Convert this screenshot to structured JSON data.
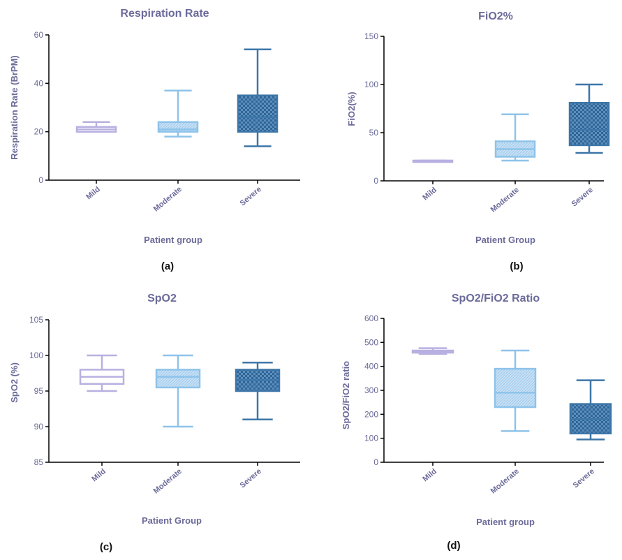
{
  "chart_data": [
    {
      "type": "box",
      "letter": "(a)",
      "title": "Respiration Rate",
      "xlabel": "Patient group",
      "ylabel": "Respiration Rate (BrPM)",
      "ylim": [
        0,
        60
      ],
      "yticks": [
        0,
        20,
        40,
        60
      ],
      "categories": [
        "Mild",
        "Moderate",
        "Severe"
      ],
      "boxes": [
        {
          "min": 20,
          "q1": 20,
          "median": 21,
          "q3": 22,
          "max": 24,
          "color": "#d8d2ee",
          "edge": "#b8b0e0",
          "pattern": "none"
        },
        {
          "min": 18,
          "q1": 20,
          "median": 21,
          "q3": 24,
          "max": 37,
          "color": "#c4ddf3",
          "edge": "#8ec3ea",
          "pattern": "hatch"
        },
        {
          "min": 14,
          "q1": 20,
          "median": 26,
          "q3": 35,
          "max": 54,
          "color": "#4f85b6",
          "edge": "#3d76a8",
          "pattern": "check"
        }
      ]
    },
    {
      "type": "box",
      "letter": "(b)",
      "title": "FiO2%",
      "xlabel": "Patient Group",
      "ylabel": "FiO2(%)",
      "ylim": [
        0,
        150
      ],
      "yticks": [
        0,
        50,
        100,
        150
      ],
      "categories": [
        "Mild",
        "Moderate",
        "Severe"
      ],
      "boxes": [
        {
          "min": 21,
          "q1": 21,
          "median": 21,
          "q3": 21,
          "max": 21,
          "color": "#d8d2ee",
          "edge": "#b8b0e0",
          "pattern": "none"
        },
        {
          "min": 21,
          "q1": 25,
          "median": 33,
          "q3": 41,
          "max": 69,
          "color": "#c4ddf3",
          "edge": "#8ec3ea",
          "pattern": "hatch"
        },
        {
          "min": 29,
          "q1": 37,
          "median": 53,
          "q3": 81,
          "max": 100,
          "color": "#4f85b6",
          "edge": "#3d76a8",
          "pattern": "check"
        }
      ]
    },
    {
      "type": "box",
      "letter": "(c)",
      "title": "SpO2",
      "xlabel": "Patient Group",
      "ylabel": "SpO2 (%)",
      "ylim": [
        85,
        105
      ],
      "yticks": [
        85,
        90,
        95,
        100,
        105
      ],
      "categories": [
        "Mild",
        "Moderate",
        "Severe"
      ],
      "boxes": [
        {
          "min": 95,
          "q1": 96,
          "median": 97,
          "q3": 98,
          "max": 100,
          "color": "#d8d2ee",
          "edge": "#b8b0e0",
          "pattern": "none"
        },
        {
          "min": 90,
          "q1": 95.5,
          "median": 97,
          "q3": 98,
          "max": 100,
          "color": "#c4ddf3",
          "edge": "#8ec3ea",
          "pattern": "hatch"
        },
        {
          "min": 91,
          "q1": 95,
          "median": 96.5,
          "q3": 98,
          "max": 99,
          "color": "#4f85b6",
          "edge": "#3d76a8",
          "pattern": "check"
        }
      ]
    },
    {
      "type": "box",
      "letter": "(d)",
      "title": "SpO2/FiO2 Ratio",
      "xlabel": "Patient group",
      "ylabel": "SpO2/FiO2 ratio",
      "ylim": [
        0,
        600
      ],
      "yticks": [
        0,
        100,
        200,
        300,
        400,
        500,
        600
      ],
      "categories": [
        "Mild",
        "Moderate",
        "Severe"
      ],
      "boxes": [
        {
          "min": 452,
          "q1": 457,
          "median": 462,
          "q3": 466,
          "max": 476,
          "color": "#d8d2ee",
          "edge": "#b8b0e0",
          "pattern": "none"
        },
        {
          "min": 130,
          "q1": 230,
          "median": 290,
          "q3": 390,
          "max": 466,
          "color": "#c4ddf3",
          "edge": "#8ec3ea",
          "pattern": "hatch"
        },
        {
          "min": 95,
          "q1": 120,
          "median": 180,
          "q3": 243,
          "max": 342,
          "color": "#4f85b6",
          "edge": "#3d76a8",
          "pattern": "check"
        }
      ]
    }
  ]
}
